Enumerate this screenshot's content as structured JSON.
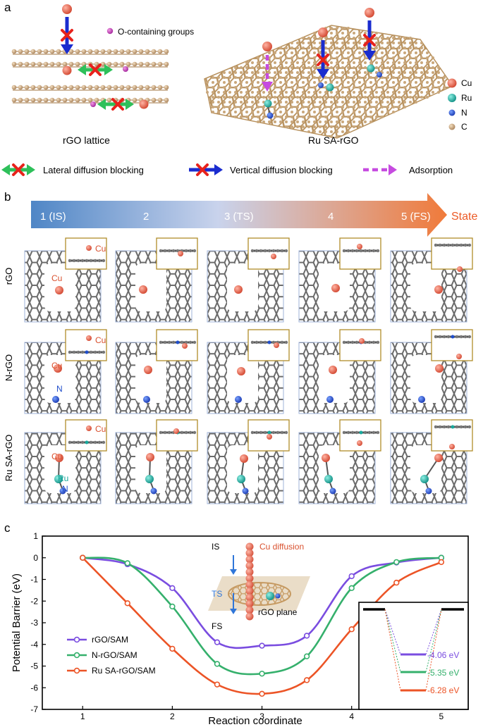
{
  "panel_labels": {
    "a": "a",
    "b": "b",
    "c": "c"
  },
  "panel_a": {
    "o_groups_label": "O-containing groups",
    "rgo_title": "rGO lattice",
    "rusa_title": "Ru SA-rGO",
    "legend_atoms": [
      "Cu",
      "Ru",
      "N",
      "C"
    ],
    "legend_arrows": [
      "Lateral diffusion blocking",
      "Vertical diffusion blocking",
      "Adsorption"
    ],
    "colors": {
      "cu": "#e0634e",
      "ru": "#18a89c",
      "n": "#1f4ecb",
      "c": "#c9a77b",
      "o": "#c33bb3",
      "blue_arrow": "#1a2ccf",
      "green_arrow": "#2ec05a",
      "purple_arrow": "#c64be0",
      "cross": "#e8221c"
    }
  },
  "panel_b": {
    "states": [
      "1 (IS)",
      "2",
      "3 (TS)",
      "4",
      "5 (FS)"
    ],
    "state_word": "State",
    "rows": [
      "rGO",
      "N-rGO",
      "Ru SA-rGO"
    ],
    "annotations": {
      "cu": "Cu",
      "n": "N",
      "ru": "Ru"
    }
  },
  "chart_data": {
    "type": "line",
    "xlabel": "Reaction coordinate",
    "ylabel": "Potential Barrier (eV)",
    "xlim": [
      0.55,
      5.3
    ],
    "ylim": [
      -7,
      1
    ],
    "xticks": [
      1,
      2,
      3,
      4,
      5
    ],
    "yticks": [
      1,
      0,
      -1,
      -2,
      -3,
      -4,
      -5,
      -6,
      -7
    ],
    "series": [
      {
        "name": "rGO/SAM",
        "color": "#7a4de0",
        "x": [
          1,
          1.5,
          2,
          2.5,
          3,
          3.5,
          4,
          4.5,
          5
        ],
        "y": [
          0,
          -0.3,
          -1.4,
          -3.9,
          -4.06,
          -3.6,
          -0.85,
          -0.22,
          0
        ]
      },
      {
        "name": "N-rGO/SAM",
        "color": "#35b06c",
        "x": [
          1,
          1.5,
          2,
          2.5,
          3,
          3.5,
          4,
          4.5,
          5
        ],
        "y": [
          0,
          -0.25,
          -2.25,
          -4.9,
          -5.35,
          -4.55,
          -1.4,
          -0.2,
          0
        ]
      },
      {
        "name": "Ru SA-rGO/SAM",
        "color": "#ec5426",
        "x": [
          1,
          1.5,
          2,
          2.5,
          3,
          3.5,
          4,
          4.5,
          5
        ],
        "y": [
          0,
          -2.1,
          -4.2,
          -5.85,
          -6.28,
          -5.65,
          -3.3,
          -1.15,
          -0.2
        ]
      }
    ],
    "inset_values": [
      "-4.06 eV",
      "-5.35 eV",
      "-6.28 eV"
    ],
    "schematic": {
      "is": "IS",
      "ts": "TS",
      "fs": "FS",
      "cu_diffusion": "Cu diffusion",
      "plane": "rGO plane"
    }
  }
}
